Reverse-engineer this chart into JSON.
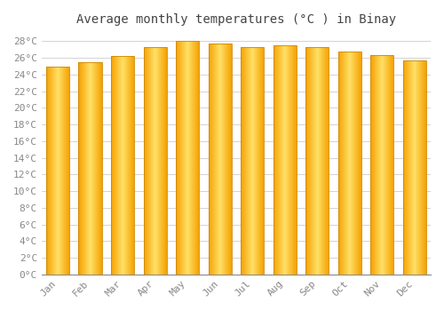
{
  "title": "Average monthly temperatures (°C ) in Binay",
  "months": [
    "Jan",
    "Feb",
    "Mar",
    "Apr",
    "May",
    "Jun",
    "Jul",
    "Aug",
    "Sep",
    "Oct",
    "Nov",
    "Dec"
  ],
  "values": [
    25.0,
    25.5,
    26.2,
    27.3,
    28.0,
    27.7,
    27.3,
    27.5,
    27.3,
    26.8,
    26.3,
    25.7
  ],
  "bar_color_edge": "#F5A000",
  "bar_color_center": "#FFE066",
  "bar_outline": "#CC8800",
  "background_color": "#ffffff",
  "grid_color": "#cccccc",
  "ylim": [
    0,
    29
  ],
  "yticks": [
    0,
    2,
    4,
    6,
    8,
    10,
    12,
    14,
    16,
    18,
    20,
    22,
    24,
    26,
    28
  ],
  "title_fontsize": 10,
  "tick_fontsize": 8,
  "tick_color": "#888888",
  "title_color": "#444444",
  "bar_width": 0.72,
  "gradient_steps": 100
}
